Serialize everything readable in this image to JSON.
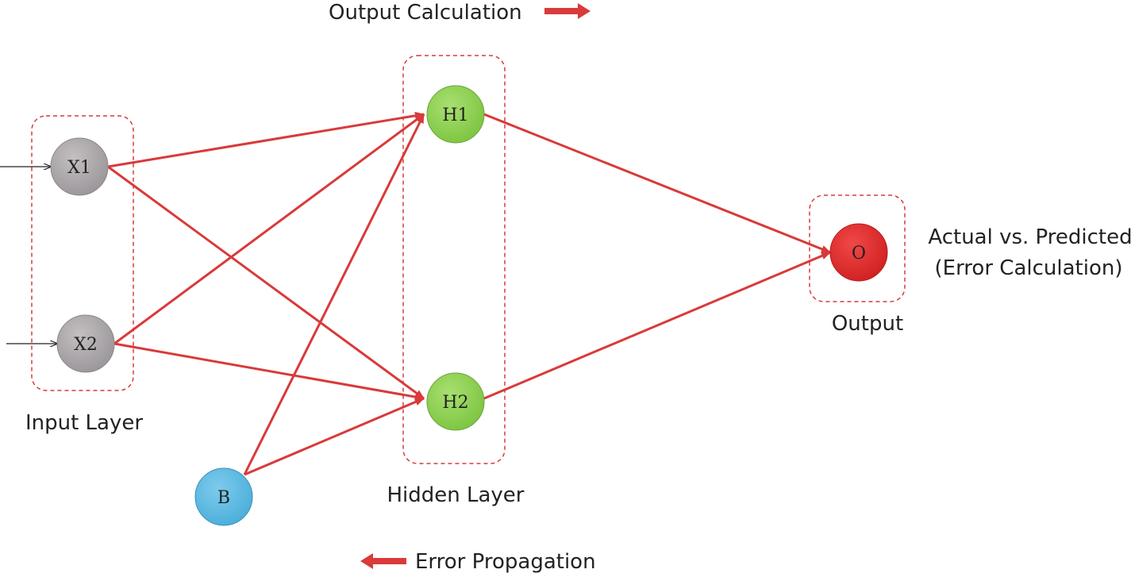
{
  "labels": {
    "output_calculation": "Output Calculation",
    "error_propagation": "Error Propagation",
    "input_layer": "Input Layer",
    "hidden_layer": "Hidden Layer",
    "output": "Output",
    "actual_vs_predicted": "Actual vs. Predicted",
    "error_calculation": "(Error Calculation)"
  },
  "nodes": {
    "x1": "X1",
    "x2": "X2",
    "h1": "H1",
    "h2": "H2",
    "o": "O",
    "b": "B"
  },
  "colors": {
    "input_node": "#a49fa2",
    "hidden_node": "#8cd450",
    "output_node": "#e03030",
    "bias_node": "#5ab9e0",
    "connection": "#d93a3a",
    "group_border": "#d93a3a"
  }
}
